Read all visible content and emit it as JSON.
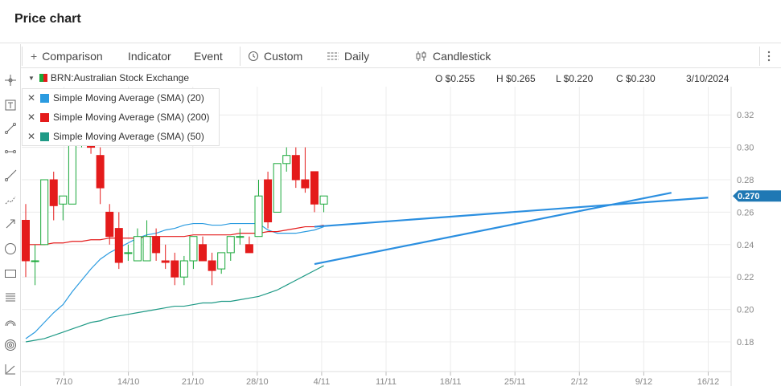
{
  "page": {
    "title": "Price chart"
  },
  "toolbar": {
    "comparison": "Comparison",
    "indicator": "Indicator",
    "event": "Event",
    "custom": "Custom",
    "daily": "Daily",
    "candlestick": "Candlestick"
  },
  "left_tools": [
    "crosshair-icon",
    "text-box-icon",
    "line-icon",
    "horizontal-segment-icon",
    "ray-icon",
    "polyline-icon",
    "arrow-icon",
    "circle-icon",
    "rectangle-icon",
    "fibonacci-icon",
    "arc-icon",
    "target-icon",
    "trend-angle-icon"
  ],
  "info": {
    "symbol": "BRN:Australian Stock Exchange",
    "open": "O $0.255",
    "high": "H $0.265",
    "low": "L $0.220",
    "close": "C $0.230",
    "date": "3/10/2024"
  },
  "legend": [
    {
      "label": "Simple Moving Average (SMA) (20)",
      "color": "#2b9be0"
    },
    {
      "label": "Simple Moving Average (SMA) (200)",
      "color": "#e41b1b"
    },
    {
      "label": "Simple Moving Average (SMA) (50)",
      "color": "#1f9a86"
    }
  ],
  "chart_data": {
    "type": "candlestick",
    "y_ticks": [
      "0.32",
      "0.30",
      "0.28",
      "0.26",
      "0.24",
      "0.22",
      "0.20",
      "0.18"
    ],
    "ylim": [
      0.175,
      0.335
    ],
    "x_ticks": [
      "7/10",
      "14/10",
      "21/10",
      "28/10",
      "4/11",
      "11/11",
      "18/11",
      "25/11",
      "2/12",
      "9/12",
      "16/12"
    ],
    "current_price": "0.270",
    "colors": {
      "up": "#1aa83a",
      "down": "#e41b1b",
      "sma20": "#2b9be0",
      "sma200": "#e41b1b",
      "sma50": "#1f9a86",
      "drawing": "#2b8fe0",
      "price_tag": "#1f78b4"
    },
    "candles": [
      {
        "date": "3/10",
        "o": 0.255,
        "h": 0.265,
        "l": 0.22,
        "c": 0.23
      },
      {
        "date": "4/10",
        "o": 0.23,
        "h": 0.24,
        "l": 0.215,
        "c": 0.23
      },
      {
        "date": "7/10",
        "o": 0.24,
        "h": 0.28,
        "l": 0.24,
        "c": 0.28
      },
      {
        "date": "8/10",
        "o": 0.28,
        "h": 0.285,
        "l": 0.255,
        "c": 0.264
      },
      {
        "date": "9/10",
        "o": 0.265,
        "h": 0.27,
        "l": 0.255,
        "c": 0.27
      },
      {
        "date": "10/10",
        "o": 0.265,
        "h": 0.305,
        "l": 0.265,
        "c": 0.305
      },
      {
        "date": "11/10",
        "o": 0.305,
        "h": 0.33,
        "l": 0.3,
        "c": 0.33
      },
      {
        "date": "14/10",
        "o": 0.302,
        "h": 0.305,
        "l": 0.296,
        "c": 0.3
      },
      {
        "date": "15/10",
        "o": 0.295,
        "h": 0.3,
        "l": 0.265,
        "c": 0.275
      },
      {
        "date": "16/10",
        "o": 0.26,
        "h": 0.265,
        "l": 0.24,
        "c": 0.245
      },
      {
        "date": "17/10",
        "o": 0.25,
        "h": 0.26,
        "l": 0.225,
        "c": 0.229
      },
      {
        "date": "18/10",
        "o": 0.235,
        "h": 0.24,
        "l": 0.23,
        "c": 0.235
      },
      {
        "date": "21/10",
        "o": 0.23,
        "h": 0.25,
        "l": 0.23,
        "c": 0.245
      },
      {
        "date": "22/10",
        "o": 0.23,
        "h": 0.255,
        "l": 0.23,
        "c": 0.245
      },
      {
        "date": "23/10",
        "o": 0.245,
        "h": 0.25,
        "l": 0.23,
        "c": 0.235
      },
      {
        "date": "24/10",
        "o": 0.23,
        "h": 0.24,
        "l": 0.225,
        "c": 0.229
      },
      {
        "date": "25/10",
        "o": 0.23,
        "h": 0.235,
        "l": 0.215,
        "c": 0.22
      },
      {
        "date": "28/10",
        "o": 0.22,
        "h": 0.233,
        "l": 0.215,
        "c": 0.23
      },
      {
        "date": "29/10",
        "o": 0.23,
        "h": 0.245,
        "l": 0.225,
        "c": 0.245
      },
      {
        "date": "30/10",
        "o": 0.24,
        "h": 0.245,
        "l": 0.23,
        "c": 0.23
      },
      {
        "date": "31/10",
        "o": 0.23,
        "h": 0.235,
        "l": 0.215,
        "c": 0.224
      },
      {
        "date": "1/11",
        "o": 0.225,
        "h": 0.235,
        "l": 0.222,
        "c": 0.235
      },
      {
        "date": "4/11",
        "o": 0.235,
        "h": 0.245,
        "l": 0.23,
        "c": 0.245
      },
      {
        "date": "5/11",
        "o": 0.245,
        "h": 0.25,
        "l": 0.24,
        "c": 0.245
      },
      {
        "date": "6/11",
        "o": 0.24,
        "h": 0.245,
        "l": 0.235,
        "c": 0.235
      },
      {
        "date": "7/11",
        "o": 0.245,
        "h": 0.28,
        "l": 0.245,
        "c": 0.27
      },
      {
        "date": "8/11",
        "o": 0.28,
        "h": 0.285,
        "l": 0.25,
        "c": 0.254
      },
      {
        "date": "11/11",
        "o": 0.26,
        "h": 0.29,
        "l": 0.26,
        "c": 0.29
      },
      {
        "date": "12/11",
        "o": 0.29,
        "h": 0.3,
        "l": 0.285,
        "c": 0.295
      },
      {
        "date": "13/11",
        "o": 0.295,
        "h": 0.3,
        "l": 0.275,
        "c": 0.28
      },
      {
        "date": "14/11",
        "o": 0.28,
        "h": 0.3,
        "l": 0.272,
        "c": 0.275
      },
      {
        "date": "15/11",
        "o": 0.285,
        "h": 0.285,
        "l": 0.26,
        "c": 0.265
      },
      {
        "date": "18/11",
        "o": 0.265,
        "h": 0.27,
        "l": 0.26,
        "c": 0.27
      }
    ],
    "sma20": [
      0.182,
      0.186,
      0.192,
      0.198,
      0.203,
      0.211,
      0.218,
      0.225,
      0.231,
      0.235,
      0.238,
      0.241,
      0.244,
      0.246,
      0.247,
      0.249,
      0.25,
      0.252,
      0.253,
      0.253,
      0.252,
      0.252,
      0.253,
      0.253,
      0.253,
      0.253,
      0.249,
      0.247,
      0.247,
      0.247,
      0.248,
      0.249,
      0.251
    ],
    "sma200": [
      0.24,
      0.24,
      0.24,
      0.241,
      0.241,
      0.242,
      0.242,
      0.243,
      0.243,
      0.244,
      0.244,
      0.244,
      0.244,
      0.245,
      0.245,
      0.245,
      0.245,
      0.245,
      0.246,
      0.246,
      0.246,
      0.246,
      0.246,
      0.247,
      0.247,
      0.247,
      0.248,
      0.248,
      0.249,
      0.25,
      0.251,
      0.251,
      0.252
    ],
    "sma50": [
      0.18,
      0.181,
      0.182,
      0.184,
      0.186,
      0.188,
      0.19,
      0.192,
      0.193,
      0.195,
      0.196,
      0.197,
      0.198,
      0.199,
      0.2,
      0.201,
      0.202,
      0.202,
      0.203,
      0.204,
      0.204,
      0.205,
      0.205,
      0.206,
      0.207,
      0.208,
      0.21,
      0.212,
      0.215,
      0.218,
      0.221,
      0.224,
      0.227
    ],
    "drawings": [
      {
        "name": "trendline-upper",
        "from": [
          "15/11",
          0.251
        ],
        "to": [
          "16/12",
          0.269
        ]
      },
      {
        "name": "trendline-lower",
        "from": [
          "15/11",
          0.228
        ],
        "to": [
          "12/12",
          0.272
        ]
      }
    ]
  }
}
